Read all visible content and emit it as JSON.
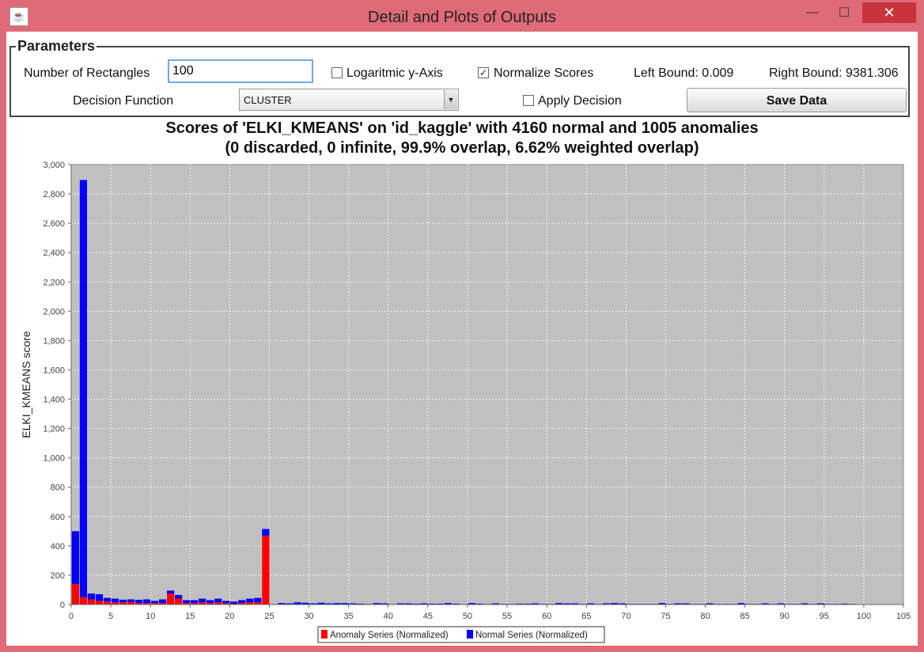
{
  "window": {
    "title": "Detail and Plots of Outputs",
    "min_symbol": "—",
    "max_symbol": "☐",
    "close_symbol": "✕",
    "app_icon": "java-icon"
  },
  "params": {
    "legend": "Parameters",
    "rect_label": "Number of Rectangles",
    "rect_value": "100",
    "log_label": "Logaritmic y-Axis",
    "log_checked": false,
    "normalize_label": "Normalize Scores",
    "normalize_checked": true,
    "left_bound": "Left Bound: 0.009",
    "right_bound": "Right Bound: 9381.306",
    "decision_label": "Decision Function",
    "decision_value": "CLUSTER",
    "apply_label": "Apply Decision",
    "apply_checked": false,
    "save_label": "Save Data"
  },
  "chart_data": {
    "type": "bar",
    "title": "Scores of 'ELKI_KMEANS' on 'id_kaggle' with 4160 normal and 1005 anomalies",
    "subtitle": "(0 discarded, 0 infinite, 99.9% overlap,  6.62% weighted overlap)",
    "ylabel": "ELKI_KMEANS score",
    "xlabel": "",
    "xlim": [
      0,
      105
    ],
    "ylim": [
      0,
      3000
    ],
    "x_ticks": [
      0,
      5,
      10,
      15,
      20,
      25,
      30,
      35,
      40,
      45,
      50,
      55,
      60,
      65,
      70,
      75,
      80,
      85,
      90,
      95,
      100,
      105
    ],
    "y_ticks": [
      0,
      200,
      400,
      600,
      800,
      1000,
      1200,
      1400,
      1600,
      1800,
      2000,
      2200,
      2400,
      2600,
      2800,
      3000
    ],
    "y_tick_labels": [
      "0",
      "200",
      "400",
      "600",
      "800",
      "1,000",
      "1,200",
      "1,400",
      "1,600",
      "1,800",
      "2,000",
      "2,200",
      "2,400",
      "2,600",
      "2,800",
      "3,000"
    ],
    "grid": true,
    "stacked": true,
    "legend_position": "bottom-center",
    "categories": [
      1,
      2,
      3,
      4,
      5,
      6,
      7,
      8,
      9,
      10,
      11,
      12,
      13,
      14,
      15,
      16,
      17,
      18,
      19,
      20,
      21,
      22,
      23,
      24,
      25,
      26,
      27,
      28,
      29,
      30,
      31,
      32,
      33,
      34,
      35,
      36,
      37,
      38,
      39,
      40,
      41,
      42,
      43,
      44,
      45,
      46,
      47,
      48,
      49,
      50,
      51,
      52,
      53,
      54,
      55,
      56,
      57,
      58,
      59,
      60,
      61,
      62,
      63,
      64,
      65,
      66,
      67,
      68,
      69,
      70,
      71,
      72,
      73,
      74,
      75,
      76,
      77,
      78,
      79,
      80,
      81,
      82,
      83,
      84,
      85,
      86,
      87,
      88,
      89,
      90,
      91,
      92,
      93,
      94,
      95,
      96,
      97,
      98,
      99,
      100
    ],
    "series": [
      {
        "name": "Anomaly Series (Normalized)",
        "color": "#ff0000",
        "values": [
          140,
          50,
          35,
          25,
          20,
          15,
          15,
          18,
          10,
          10,
          10,
          10,
          75,
          40,
          10,
          10,
          15,
          10,
          15,
          10,
          5,
          10,
          15,
          15,
          470,
          0,
          0,
          0,
          0,
          0,
          0,
          0,
          0,
          0,
          0,
          0,
          0,
          0,
          0,
          0,
          0,
          0,
          0,
          0,
          0,
          0,
          0,
          0,
          0,
          0,
          0,
          0,
          0,
          0,
          0,
          0,
          0,
          0,
          0,
          0,
          0,
          0,
          0,
          0,
          0,
          0,
          0,
          0,
          0,
          0,
          0,
          0,
          0,
          0,
          0,
          0,
          0,
          0,
          0,
          0,
          0,
          0,
          0,
          0,
          0,
          0,
          0,
          0,
          0,
          0,
          0,
          0,
          0,
          0,
          0,
          0,
          0,
          0,
          0,
          0
        ]
      },
      {
        "name": "Normal Series (Normalized)",
        "color": "#0000ff",
        "values": [
          360,
          2845,
          40,
          45,
          25,
          25,
          18,
          17,
          22,
          25,
          15,
          25,
          20,
          25,
          20,
          20,
          25,
          20,
          25,
          15,
          15,
          20,
          25,
          30,
          45,
          3,
          10,
          8,
          15,
          12,
          8,
          12,
          8,
          10,
          10,
          8,
          6,
          4,
          10,
          8,
          3,
          8,
          8,
          6,
          8,
          6,
          6,
          10,
          6,
          3,
          10,
          6,
          4,
          8,
          4,
          4,
          6,
          6,
          8,
          4,
          4,
          10,
          8,
          8,
          4,
          8,
          4,
          8,
          10,
          8,
          4,
          4,
          4,
          4,
          10,
          4,
          8,
          8,
          4,
          4,
          8,
          4,
          4,
          4,
          10,
          4,
          4,
          8,
          4,
          8,
          4,
          4,
          8,
          4,
          8,
          4,
          4,
          6,
          4,
          2
        ]
      }
    ]
  }
}
